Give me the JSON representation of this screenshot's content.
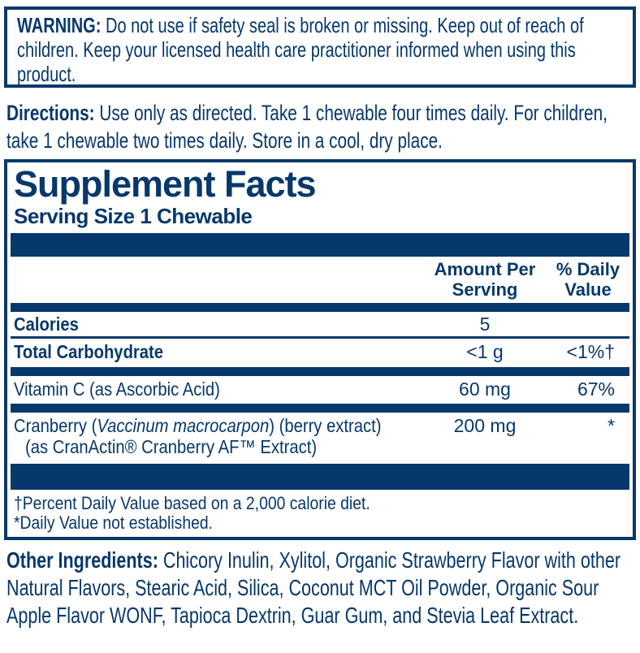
{
  "colors": {
    "navy": "#07386b",
    "background": "#ffffff"
  },
  "warning": {
    "label": "WARNING:",
    "text": " Do not use if safety seal is broken or missing. Keep out of reach of children. Keep your licensed health care practitioner informed when using this product."
  },
  "directions": {
    "label": "Directions:",
    "text": " Use only as directed. Take 1 chewable four times daily. For children, take 1 chewable two times daily. Store in a cool, dry place."
  },
  "supplement_facts": {
    "title": "Supplement Facts",
    "serving_size": "Serving Size 1 Chewable",
    "header": {
      "amount": "Amount Per\nServing",
      "daily": "% Daily\nValue"
    },
    "rows": {
      "calories": {
        "name": "Calories",
        "amount": "5",
        "daily": ""
      },
      "total_carbohydrate": {
        "name": "Total Carbohydrate",
        "amount": "<1 g",
        "daily": "<1%†"
      },
      "vitamin_c": {
        "name": "Vitamin C (as Ascorbic Acid)",
        "amount": "60 mg",
        "daily": "67%"
      },
      "cranberry": {
        "name_prefix": "Cranberry (",
        "name_species": "Vaccinum macrocarpon",
        "name_suffix": ") (berry extract)",
        "name_line2": "(as CranActin® Cranberry AF™ Extract)",
        "amount": "200 mg",
        "daily": "*"
      }
    },
    "footnotes": {
      "percent_daily_value": "†Percent Daily Value based on a 2,000 calorie diet.",
      "not_established": "*Daily Value not established."
    }
  },
  "other_ingredients": {
    "label": "Other Ingredients:",
    "text": " Chicory Inulin, Xylitol,  Organic Strawberry Flavor with other Natural Flavors, Stearic Acid, Silica, Coconut MCT Oil Powder, Organic Sour Apple Flavor WONF, Tapioca Dextrin, Guar Gum, and Stevia Leaf Extract."
  }
}
